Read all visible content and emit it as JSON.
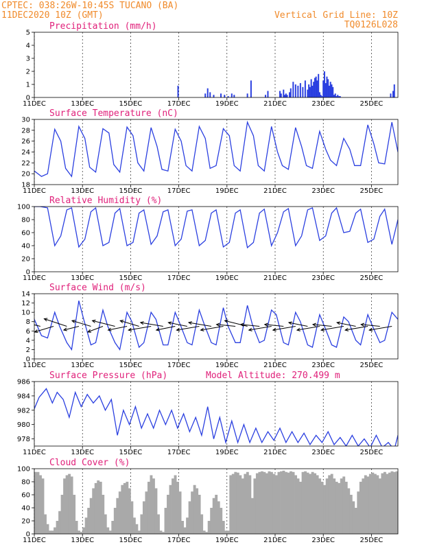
{
  "header": {
    "line1_left": "CPTEC:  038:26W-10:45S  TUCANO (BA)",
    "line2_left": "11DEC2020 10Z (GMT)",
    "line1_right": "Vertical Grid Line: 10Z",
    "line2_right": "TQ0126L028"
  },
  "colors": {
    "header": "#f08a2a",
    "title": "#e0207a",
    "line": "#2a3fe0",
    "cloud": "#a9a9a9"
  },
  "x_ticks": [
    "11DEC",
    "13DEC",
    "15DEC",
    "17DEC",
    "19DEC",
    "21DEC",
    "23DEC",
    "25DEC"
  ],
  "chart_data": [
    {
      "id": "precip",
      "type": "bar",
      "title": "Precipitation (mm/h)",
      "ylim": [
        0,
        5
      ],
      "yticks": [
        0,
        1,
        2,
        3,
        4,
        5
      ],
      "x": [
        5.97,
        7.1,
        7.2,
        7.3,
        7.45,
        7.75,
        7.9,
        8.05,
        8.2,
        8.3,
        8.85,
        9.0,
        9.6,
        9.7,
        10.2,
        10.25,
        10.35,
        10.4,
        10.45,
        10.5,
        10.6,
        10.65,
        10.75,
        10.85,
        10.95,
        11.05,
        11.15,
        11.25,
        11.35,
        11.4,
        11.45,
        11.5,
        11.55,
        11.6,
        11.65,
        11.7,
        11.75,
        11.8,
        11.85,
        11.9,
        11.95,
        12.0,
        12.05,
        12.1,
        12.15,
        12.2,
        12.25,
        12.3,
        12.35,
        12.4,
        12.45,
        12.5,
        12.55,
        12.6,
        12.65,
        12.7,
        14.8,
        14.9,
        14.95
      ],
      "values": [
        0.9,
        0.3,
        0.7,
        0.4,
        0.2,
        0.3,
        0.2,
        0.1,
        0.3,
        0.2,
        0.3,
        1.3,
        0.2,
        0.5,
        0.5,
        0.3,
        0.6,
        0.2,
        0.3,
        0.2,
        0.4,
        0.7,
        1.2,
        1.0,
        0.9,
        1.1,
        0.8,
        1.3,
        0.6,
        1.0,
        0.8,
        1.4,
        0.9,
        1.2,
        1.5,
        1.6,
        1.3,
        1.8,
        0.4,
        0.2,
        0.1,
        1.3,
        2.0,
        1.1,
        1.6,
        1.4,
        0.9,
        1.2,
        1.0,
        0.8,
        0.2,
        0.3,
        0.1,
        0.2,
        0.1,
        0.1,
        0.3,
        0.5,
        1.0
      ]
    },
    {
      "id": "temp",
      "type": "line",
      "title": "Surface Temperature (nC)",
      "ylim": [
        18,
        30
      ],
      "yticks": [
        18,
        20,
        22,
        24,
        26,
        28,
        30
      ],
      "x": [
        0,
        0.3,
        0.55,
        0.85,
        1.1,
        1.3,
        1.55,
        1.85,
        2.1,
        2.3,
        2.55,
        2.85,
        3.1,
        3.3,
        3.55,
        3.85,
        4.1,
        4.3,
        4.55,
        4.85,
        5.1,
        5.3,
        5.55,
        5.85,
        6.1,
        6.3,
        6.55,
        6.85,
        7.1,
        7.3,
        7.55,
        7.85,
        8.1,
        8.3,
        8.55,
        8.85,
        9.1,
        9.3,
        9.55,
        9.85,
        10.1,
        10.3,
        10.55,
        10.85,
        11.1,
        11.3,
        11.55,
        11.85,
        12.1,
        12.3,
        12.55,
        12.85,
        13.1,
        13.3,
        13.55,
        13.85,
        14.1,
        14.3,
        14.55,
        14.85,
        15.1
      ],
      "values": [
        20.5,
        19.5,
        20.0,
        28.2,
        26.0,
        21.0,
        19.5,
        28.7,
        26.5,
        21.2,
        20.3,
        28.3,
        27.5,
        21.7,
        20.3,
        28.6,
        27.0,
        22.0,
        20.5,
        28.5,
        25.0,
        20.8,
        20.5,
        28.2,
        26.0,
        21.5,
        20.5,
        28.7,
        26.5,
        21.0,
        21.5,
        28.3,
        27.0,
        21.5,
        20.5,
        29.5,
        27.0,
        21.5,
        20.5,
        28.7,
        24.0,
        21.5,
        20.8,
        28.5,
        25.0,
        21.5,
        21.0,
        27.8,
        24.5,
        22.5,
        21.5,
        26.5,
        24.5,
        21.5,
        21.5,
        29.0,
        25.5,
        22.0,
        21.8,
        29.5,
        24.0
      ]
    },
    {
      "id": "rh",
      "type": "line",
      "title": "Relative Humidity (%)",
      "ylim": [
        0,
        100
      ],
      "yticks": [
        0,
        20,
        40,
        60,
        80,
        100
      ],
      "x": [
        0,
        0.25,
        0.55,
        0.85,
        1.1,
        1.35,
        1.55,
        1.85,
        2.1,
        2.35,
        2.55,
        2.85,
        3.1,
        3.35,
        3.55,
        3.85,
        4.1,
        4.35,
        4.55,
        4.85,
        5.1,
        5.35,
        5.55,
        5.85,
        6.1,
        6.35,
        6.55,
        6.85,
        7.1,
        7.35,
        7.55,
        7.85,
        8.1,
        8.35,
        8.55,
        8.85,
        9.1,
        9.35,
        9.55,
        9.85,
        10.1,
        10.35,
        10.55,
        10.85,
        11.1,
        11.35,
        11.55,
        11.85,
        12.1,
        12.35,
        12.55,
        12.85,
        13.1,
        13.35,
        13.55,
        13.85,
        14.1,
        14.35,
        14.55,
        14.85,
        15.1
      ],
      "values": [
        100,
        100,
        98,
        40,
        55,
        95,
        98,
        38,
        50,
        92,
        98,
        40,
        45,
        90,
        97,
        40,
        45,
        90,
        95,
        42,
        55,
        92,
        95,
        40,
        50,
        93,
        95,
        40,
        48,
        90,
        95,
        38,
        45,
        90,
        95,
        37,
        45,
        90,
        96,
        40,
        60,
        92,
        97,
        40,
        55,
        95,
        98,
        48,
        55,
        90,
        98,
        60,
        62,
        90,
        96,
        45,
        50,
        85,
        96,
        42,
        80
      ]
    },
    {
      "id": "wind",
      "type": "line",
      "title": "Surface Wind (m/s)",
      "ylim": [
        0,
        14
      ],
      "yticks": [
        0,
        2,
        4,
        6,
        8,
        10,
        12,
        14
      ],
      "x": [
        0,
        0.3,
        0.55,
        0.85,
        1.05,
        1.35,
        1.55,
        1.85,
        2.05,
        2.35,
        2.55,
        2.85,
        3.05,
        3.35,
        3.55,
        3.85,
        4.05,
        4.35,
        4.55,
        4.85,
        5.05,
        5.35,
        5.55,
        5.85,
        6.05,
        6.35,
        6.55,
        6.85,
        7.05,
        7.35,
        7.55,
        7.85,
        8.05,
        8.35,
        8.55,
        8.85,
        9.05,
        9.35,
        9.55,
        9.85,
        10.05,
        10.35,
        10.55,
        10.85,
        11.05,
        11.35,
        11.55,
        11.85,
        12.05,
        12.35,
        12.55,
        12.85,
        13.05,
        13.35,
        13.55,
        13.85,
        14.05,
        14.35,
        14.55,
        14.85,
        15.1
      ],
      "values": [
        8.5,
        5.0,
        4.5,
        10.0,
        7.0,
        3.5,
        2.0,
        12.5,
        8.5,
        3.0,
        3.5,
        10.5,
        7.0,
        3.5,
        2.0,
        10.0,
        8.0,
        2.5,
        3.5,
        10.0,
        8.5,
        3.0,
        3.0,
        10.0,
        7.5,
        3.5,
        3.0,
        10.5,
        7.5,
        3.5,
        3.0,
        11.0,
        7.0,
        3.5,
        3.5,
        11.5,
        7.5,
        3.5,
        4.0,
        10.5,
        9.5,
        3.5,
        3.0,
        10.0,
        8.0,
        3.0,
        2.5,
        9.5,
        7.0,
        3.0,
        2.5,
        9.0,
        8.0,
        4.0,
        3.0,
        9.5,
        7.0,
        3.5,
        4.0,
        10.0,
        8.5
      ],
      "vectors": {
        "x": [
          0.25,
          0.8,
          1.35,
          1.85,
          2.35,
          2.85,
          3.35,
          3.85,
          4.35,
          4.85,
          5.35,
          5.85,
          6.35,
          6.85,
          7.35,
          7.85,
          8.35,
          8.85,
          9.35,
          9.85,
          10.35,
          10.85,
          11.35,
          11.85,
          12.35,
          12.85,
          13.35,
          13.85,
          14.35,
          14.85
        ],
        "u": [
          -6,
          -5,
          -6,
          -4,
          -5,
          -4,
          -6,
          -5,
          -5,
          -6,
          -6,
          -5,
          -5,
          -6,
          -6,
          -6,
          -5,
          -6,
          -5,
          -6,
          -5,
          -6,
          -5,
          -6,
          -5,
          -6,
          -5,
          -6,
          -5,
          -6
        ],
        "v": [
          1.5,
          -1.5,
          2,
          -1,
          1.5,
          -1.5,
          1.5,
          -1,
          1.5,
          -1,
          1,
          -1,
          1,
          -1,
          1,
          -1,
          0.5,
          1.5,
          0.5,
          -1,
          0.5,
          -1,
          1,
          -1,
          0.5,
          -1,
          1,
          -1,
          0.5,
          -1
        ]
      }
    },
    {
      "id": "pressure",
      "type": "line",
      "title": "Surface Pressure (hPa)",
      "annotation": "Model Altitude: 270.499 m",
      "ylim": [
        977,
        986
      ],
      "yticks": [
        978,
        980,
        982,
        984,
        986
      ],
      "x": [
        0,
        0.2,
        0.5,
        0.75,
        0.95,
        1.2,
        1.45,
        1.7,
        1.95,
        2.2,
        2.45,
        2.7,
        2.95,
        3.2,
        3.45,
        3.7,
        3.95,
        4.2,
        4.45,
        4.7,
        4.95,
        5.2,
        5.45,
        5.7,
        5.95,
        6.2,
        6.45,
        6.7,
        6.95,
        7.2,
        7.45,
        7.7,
        7.95,
        8.2,
        8.45,
        8.7,
        8.95,
        9.2,
        9.45,
        9.7,
        9.95,
        10.2,
        10.45,
        10.7,
        10.95,
        11.2,
        11.45,
        11.7,
        11.95,
        12.2,
        12.45,
        12.7,
        12.95,
        13.2,
        13.45,
        13.7,
        13.95,
        14.2,
        14.45,
        14.7,
        14.95,
        15.1
      ],
      "values": [
        982.2,
        983.8,
        985.0,
        983.0,
        984.5,
        983.5,
        981.0,
        984.5,
        982.5,
        984.2,
        983.0,
        984.0,
        982.0,
        983.5,
        978.5,
        982.0,
        980.0,
        982.5,
        979.5,
        981.5,
        979.5,
        982.0,
        980.0,
        982.0,
        979.5,
        981.5,
        979.0,
        981.0,
        978.5,
        982.5,
        978.0,
        981.0,
        977.5,
        980.5,
        977.5,
        980.0,
        977.5,
        979.5,
        977.5,
        979.0,
        977.8,
        979.5,
        977.5,
        979.0,
        977.5,
        978.8,
        977.2,
        978.5,
        977.5,
        979.0,
        977.2,
        978.2,
        977.0,
        978.5,
        977.0,
        978.0,
        976.8,
        978.5,
        976.8,
        977.5,
        976.5,
        978.5
      ]
    },
    {
      "id": "cloud",
      "type": "area",
      "title": "Cloud Cover (%)",
      "ylim": [
        0,
        100
      ],
      "yticks": [
        0,
        20,
        40,
        60,
        80,
        100
      ],
      "x": [
        0,
        0.1,
        0.2,
        0.3,
        0.4,
        0.5,
        0.6,
        0.7,
        0.8,
        0.9,
        1.0,
        1.1,
        1.2,
        1.3,
        1.4,
        1.5,
        1.6,
        1.7,
        1.8,
        1.9,
        2.0,
        2.1,
        2.2,
        2.3,
        2.4,
        2.5,
        2.6,
        2.7,
        2.8,
        2.9,
        3.0,
        3.1,
        3.2,
        3.3,
        3.4,
        3.5,
        3.6,
        3.7,
        3.8,
        3.9,
        4.0,
        4.1,
        4.2,
        4.3,
        4.4,
        4.5,
        4.6,
        4.7,
        4.8,
        4.9,
        5.0,
        5.1,
        5.2,
        5.3,
        5.4,
        5.5,
        5.6,
        5.7,
        5.8,
        5.9,
        6.0,
        6.1,
        6.2,
        6.3,
        6.4,
        6.5,
        6.6,
        6.7,
        6.8,
        6.9,
        7.0,
        7.1,
        7.2,
        7.3,
        7.4,
        7.5,
        7.6,
        7.7,
        7.8,
        7.9,
        8.0,
        8.1,
        8.2,
        8.3,
        8.4,
        8.5,
        8.6,
        8.7,
        8.8,
        8.9,
        9.0,
        9.1,
        9.2,
        9.3,
        9.4,
        9.5,
        9.6,
        9.7,
        9.8,
        9.9,
        10.0,
        10.1,
        10.2,
        10.3,
        10.4,
        10.5,
        10.6,
        10.7,
        10.8,
        10.9,
        11.0,
        11.1,
        11.2,
        11.3,
        11.4,
        11.5,
        11.6,
        11.7,
        11.8,
        11.9,
        12.0,
        12.1,
        12.2,
        12.3,
        12.4,
        12.5,
        12.6,
        12.7,
        12.8,
        12.9,
        13.0,
        13.1,
        13.2,
        13.3,
        13.4,
        13.5,
        13.6,
        13.7,
        13.8,
        13.9,
        14.0,
        14.1,
        14.2,
        14.3,
        14.4,
        14.5,
        14.6,
        14.7,
        14.8,
        14.9,
        15.0,
        15.1
      ],
      "values": [
        95,
        95,
        90,
        85,
        30,
        15,
        5,
        5,
        10,
        20,
        35,
        60,
        85,
        90,
        92,
        88,
        60,
        20,
        5,
        3,
        10,
        25,
        40,
        55,
        70,
        78,
        82,
        80,
        60,
        30,
        10,
        5,
        20,
        40,
        55,
        65,
        75,
        78,
        80,
        70,
        50,
        25,
        15,
        5,
        30,
        50,
        65,
        80,
        90,
        85,
        70,
        30,
        5,
        3,
        40,
        60,
        75,
        85,
        90,
        80,
        65,
        20,
        10,
        25,
        50,
        65,
        75,
        70,
        60,
        30,
        5,
        3,
        20,
        40,
        55,
        60,
        50,
        40,
        20,
        5,
        5,
        90,
        92,
        95,
        94,
        90,
        85,
        92,
        95,
        90,
        55,
        85,
        93,
        95,
        96,
        95,
        93,
        96,
        95,
        92,
        90,
        95,
        96,
        97,
        95,
        94,
        96,
        95,
        90,
        85,
        80,
        95,
        96,
        94,
        92,
        95,
        93,
        90,
        85,
        80,
        75,
        85,
        90,
        92,
        85,
        80,
        78,
        85,
        88,
        80,
        70,
        60,
        50,
        40,
        65,
        80,
        85,
        90,
        88,
        92,
        94,
        92,
        90,
        85,
        93,
        95,
        92,
        94,
        96,
        95,
        96,
        97
      ]
    }
  ]
}
